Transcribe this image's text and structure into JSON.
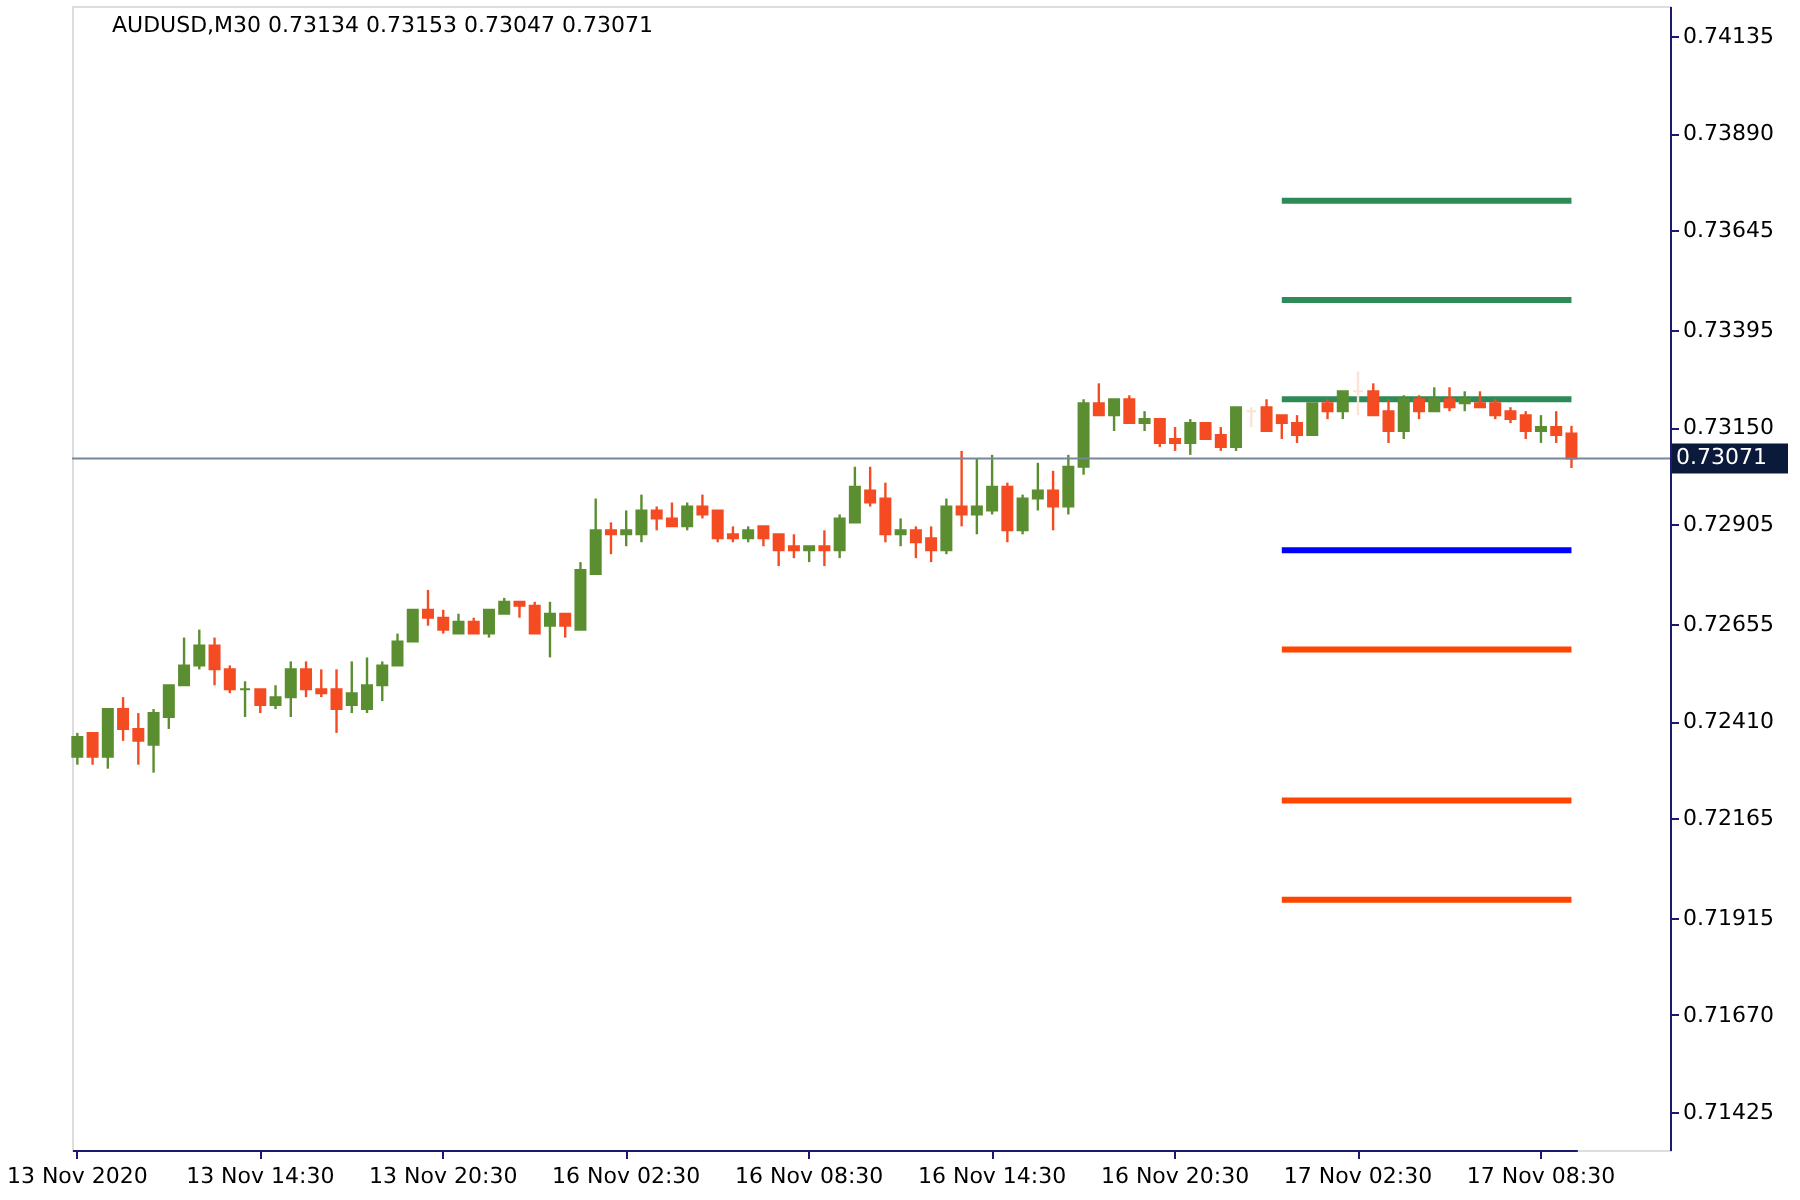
{
  "chart_data": {
    "type": "candlestick",
    "title": "AUDUSD,M30  0.73134 0.73153 0.73047 0.73071",
    "categories": [
      "13 Nov 2020",
      null,
      null,
      null,
      null,
      null,
      null,
      null,
      null,
      null,
      null,
      null,
      "13 Nov 14:30",
      null,
      null,
      null,
      null,
      null,
      null,
      null,
      null,
      null,
      null,
      null,
      "13 Nov 20:30",
      null,
      null,
      null,
      null,
      null,
      null,
      null,
      null,
      null,
      null,
      null,
      "16 Nov 02:30",
      null,
      null,
      null,
      null,
      null,
      null,
      null,
      null,
      null,
      null,
      null,
      "16 Nov 08:30",
      null,
      null,
      null,
      null,
      null,
      null,
      null,
      null,
      null,
      null,
      null,
      "16 Nov 14:30",
      null,
      null,
      null,
      null,
      null,
      null,
      null,
      null,
      null,
      null,
      null,
      "16 Nov 20:30",
      null,
      null,
      null,
      null,
      null,
      null,
      null,
      null,
      null,
      null,
      null,
      "17 Nov 02:30",
      null,
      null,
      null,
      null,
      null,
      null,
      null,
      null,
      null,
      null,
      null,
      "17 Nov 08:30",
      null,
      null
    ],
    "ohlc": [
      [
        0.7232,
        0.7238,
        0.723,
        0.7237
      ],
      [
        0.7238,
        0.7238,
        0.723,
        0.7232
      ],
      [
        0.7232,
        0.7244,
        0.7229,
        0.7244
      ],
      [
        0.7244,
        0.7247,
        0.7236,
        0.7239
      ],
      [
        0.7239,
        0.7243,
        0.723,
        0.7236
      ],
      [
        0.7235,
        0.7244,
        0.7228,
        0.7243
      ],
      [
        0.7242,
        0.725,
        0.7239,
        0.725
      ],
      [
        0.725,
        0.7262,
        0.725,
        0.7255
      ],
      [
        0.7255,
        0.7264,
        0.7254,
        0.726
      ],
      [
        0.726,
        0.7262,
        0.725,
        0.7254
      ],
      [
        0.7254,
        0.7255,
        0.7248,
        0.7249
      ],
      [
        0.7249,
        0.7251,
        0.7242,
        0.7249
      ],
      [
        0.7249,
        0.7249,
        0.7243,
        0.7245
      ],
      [
        0.7245,
        0.725,
        0.7244,
        0.7247
      ],
      [
        0.7247,
        0.7256,
        0.7242,
        0.7254
      ],
      [
        0.7254,
        0.7256,
        0.7247,
        0.7249
      ],
      [
        0.7249,
        0.7254,
        0.7247,
        0.7248
      ],
      [
        0.7249,
        0.7254,
        0.7238,
        0.7244
      ],
      [
        0.7245,
        0.7256,
        0.7243,
        0.7248
      ],
      [
        0.7244,
        0.7257,
        0.7243,
        0.725
      ],
      [
        0.725,
        0.7256,
        0.7246,
        0.7255
      ],
      [
        0.7255,
        0.7263,
        0.7255,
        0.7261
      ],
      [
        0.7261,
        0.7269,
        0.7261,
        0.7269
      ],
      [
        0.7269,
        0.7274,
        0.7265,
        0.7267
      ],
      [
        0.7267,
        0.7269,
        0.7263,
        0.7264
      ],
      [
        0.7263,
        0.7268,
        0.7263,
        0.7266
      ],
      [
        0.7266,
        0.7267,
        0.7263,
        0.7263
      ],
      [
        0.7263,
        0.7269,
        0.7262,
        0.7269
      ],
      [
        0.7268,
        0.7272,
        0.7268,
        0.7271
      ],
      [
        0.7271,
        0.7271,
        0.7267,
        0.727
      ],
      [
        0.727,
        0.7271,
        0.7263,
        0.7263
      ],
      [
        0.7265,
        0.7271,
        0.7257,
        0.7268
      ],
      [
        0.7268,
        0.7268,
        0.7262,
        0.7265
      ],
      [
        0.7264,
        0.7281,
        0.7264,
        0.7279
      ],
      [
        0.7278,
        0.7297,
        0.7278,
        0.7289
      ],
      [
        0.7289,
        0.7291,
        0.7283,
        0.7288
      ],
      [
        0.7288,
        0.7294,
        0.7285,
        0.7289
      ],
      [
        0.7288,
        0.7298,
        0.7286,
        0.7294
      ],
      [
        0.7294,
        0.7295,
        0.7289,
        0.7292
      ],
      [
        0.7292,
        0.7296,
        0.729,
        0.729
      ],
      [
        0.729,
        0.7296,
        0.7289,
        0.7295
      ],
      [
        0.7295,
        0.7298,
        0.7292,
        0.7293
      ],
      [
        0.7294,
        0.7294,
        0.7286,
        0.7287
      ],
      [
        0.7288,
        0.729,
        0.7286,
        0.7287
      ],
      [
        0.7287,
        0.729,
        0.7286,
        0.7289
      ],
      [
        0.729,
        0.729,
        0.7285,
        0.7287
      ],
      [
        0.7288,
        0.7288,
        0.728,
        0.7284
      ],
      [
        0.7285,
        0.7288,
        0.7282,
        0.7284
      ],
      [
        0.7284,
        0.7285,
        0.7281,
        0.7285
      ],
      [
        0.7285,
        0.7289,
        0.728,
        0.7284
      ],
      [
        0.7284,
        0.7293,
        0.7282,
        0.7292
      ],
      [
        0.7291,
        0.7305,
        0.7291,
        0.73
      ],
      [
        0.7299,
        0.7305,
        0.7295,
        0.7296
      ],
      [
        0.7297,
        0.7301,
        0.7286,
        0.7288
      ],
      [
        0.7288,
        0.7292,
        0.7285,
        0.7289
      ],
      [
        0.7289,
        0.729,
        0.7282,
        0.7286
      ],
      [
        0.7287,
        0.729,
        0.7281,
        0.7284
      ],
      [
        0.7284,
        0.7297,
        0.7283,
        0.7295
      ],
      [
        0.7295,
        0.7309,
        0.729,
        0.7293
      ],
      [
        0.7293,
        0.7307,
        0.7288,
        0.7295
      ],
      [
        0.7294,
        0.7308,
        0.7293,
        0.73
      ],
      [
        0.73,
        0.7301,
        0.7286,
        0.7289
      ],
      [
        0.7289,
        0.7298,
        0.7288,
        0.7297
      ],
      [
        0.7297,
        0.7306,
        0.7294,
        0.7299
      ],
      [
        0.7299,
        0.7304,
        0.7289,
        0.7295
      ],
      [
        0.7295,
        0.7308,
        0.7293,
        0.7305
      ],
      [
        0.7305,
        0.7322,
        0.7303,
        0.7321
      ],
      [
        0.7321,
        0.7326,
        0.7318,
        0.7318
      ],
      [
        0.7318,
        0.7322,
        0.7314,
        0.7322
      ],
      [
        0.7322,
        0.7323,
        0.7316,
        0.7316
      ],
      [
        0.7316,
        0.7319,
        0.7314,
        0.7317
      ],
      [
        0.7317,
        0.7317,
        0.731,
        0.7311
      ],
      [
        0.7312,
        0.7315,
        0.7309,
        0.7311
      ],
      [
        0.7311,
        0.7317,
        0.7308,
        0.7316
      ],
      [
        0.7316,
        0.7316,
        0.7312,
        0.7312
      ],
      [
        0.7313,
        0.7315,
        0.7309,
        0.731
      ],
      [
        0.731,
        0.732,
        0.7309,
        0.732
      ],
      [
        0.7319,
        0.732,
        0.7315,
        0.7319
      ],
      [
        0.732,
        0.7322,
        0.7314,
        0.7314
      ],
      [
        0.7318,
        0.7318,
        0.7312,
        0.7316
      ],
      [
        0.7316,
        0.7318,
        0.7311,
        0.7313
      ],
      [
        0.7313,
        0.7321,
        0.7313,
        0.7321
      ],
      [
        0.7321,
        0.7322,
        0.7317,
        0.7319
      ],
      [
        0.7319,
        0.7324,
        0.7317,
        0.7324
      ],
      [
        0.7324,
        0.7329,
        0.7318,
        0.7324
      ],
      [
        0.7324,
        0.7326,
        0.7318,
        0.7318
      ],
      [
        0.7319,
        0.7322,
        0.7311,
        0.7314
      ],
      [
        0.7314,
        0.7323,
        0.7312,
        0.7322
      ],
      [
        0.7322,
        0.7323,
        0.7317,
        0.7319
      ],
      [
        0.7319,
        0.7325,
        0.7319,
        0.7322
      ],
      [
        0.7322,
        0.7325,
        0.7319,
        0.732
      ],
      [
        0.7321,
        0.7324,
        0.7319,
        0.7322
      ],
      [
        0.7321,
        0.7324,
        0.732,
        0.732
      ],
      [
        0.7321,
        0.7322,
        0.7317,
        0.7318
      ],
      [
        0.7319,
        0.732,
        0.7316,
        0.7317
      ],
      [
        0.7318,
        0.7319,
        0.7312,
        0.7314
      ],
      [
        0.7314,
        0.7318,
        0.7311,
        0.7315
      ],
      [
        0.7315,
        0.7319,
        0.7311,
        0.7313
      ],
      [
        0.73134,
        0.73153,
        0.73047,
        0.73071
      ]
    ],
    "colors": [
      "#5b8e31",
      "#f44b23",
      "#5b8e31",
      "#f44b23",
      "#f44b23",
      "#5b8e31",
      "#5b8e31",
      "#5b8e31",
      "#5b8e31",
      "#f44b23",
      "#f44b23",
      "#5b8e31",
      "#f44b23",
      "#5b8e31",
      "#5b8e31",
      "#f44b23",
      "#f44b23",
      "#f44b23",
      "#5b8e31",
      "#5b8e31",
      "#5b8e31",
      "#5b8e31",
      "#5b8e31",
      "#f44b23",
      "#f44b23",
      "#5b8e31",
      "#f44b23",
      "#5b8e31",
      "#5b8e31",
      "#f44b23",
      "#f44b23",
      "#5b8e31",
      "#f44b23",
      "#5b8e31",
      "#5b8e31",
      "#f44b23",
      "#5b8e31",
      "#5b8e31",
      "#f44b23",
      "#f44b23",
      "#5b8e31",
      "#f44b23",
      "#f44b23",
      "#f44b23",
      "#5b8e31",
      "#f44b23",
      "#f44b23",
      "#f44b23",
      "#5b8e31",
      "#f44b23",
      "#5b8e31",
      "#5b8e31",
      "#f44b23",
      "#f44b23",
      "#5b8e31",
      "#f44b23",
      "#f44b23",
      "#5b8e31",
      "#f44b23",
      "#5b8e31",
      "#5b8e31",
      "#f44b23",
      "#5b8e31",
      "#5b8e31",
      "#f44b23",
      "#5b8e31",
      "#5b8e31",
      "#f44b23",
      "#5b8e31",
      "#f44b23",
      "#5b8e31",
      "#f44b23",
      "#f44b23",
      "#5b8e31",
      "#f44b23",
      "#f44b23",
      "#5b8e31",
      "#fbe3d8",
      "#f44b23",
      "#f44b23",
      "#f44b23",
      "#5b8e31",
      "#f44b23",
      "#5b8e31",
      "#fbe3d8",
      "#f44b23",
      "#f44b23",
      "#5b8e31",
      "#f44b23",
      "#5b8e31",
      "#f44b23",
      "#5b8e31",
      "#f44b23",
      "#f44b23",
      "#f44b23",
      "#f44b23",
      "#5b8e31",
      "#f44b23",
      "#f44b23"
    ],
    "ylim": [
      0.7133,
      0.7421
    ],
    "yticks": [
      {
        "value": 0.74135,
        "label": "0.74135"
      },
      {
        "value": 0.7389,
        "label": "0.73890"
      },
      {
        "value": 0.73645,
        "label": "0.73645"
      },
      {
        "value": 0.73395,
        "label": "0.73395"
      },
      {
        "value": 0.7315,
        "label": "0.73150"
      },
      {
        "value": 0.72905,
        "label": "0.72905"
      },
      {
        "value": 0.72655,
        "label": "0.72655"
      },
      {
        "value": 0.7241,
        "label": "0.72410"
      },
      {
        "value": 0.72165,
        "label": "0.72165"
      },
      {
        "value": 0.71915,
        "label": "0.71915"
      },
      {
        "value": 0.7167,
        "label": "0.71670"
      },
      {
        "value": 0.71425,
        "label": "0.71425"
      }
    ],
    "series": [
      {
        "type": "line",
        "color": "#2e8b57",
        "values": [
          null,
          null,
          null,
          null,
          null,
          null,
          null,
          null,
          null,
          null,
          null,
          null,
          null,
          null,
          null,
          null,
          null,
          null,
          null,
          null,
          null,
          null,
          null,
          null,
          null,
          null,
          null,
          null,
          null,
          null,
          null,
          null,
          null,
          null,
          null,
          null,
          null,
          null,
          null,
          null,
          null,
          null,
          null,
          null,
          null,
          null,
          null,
          null,
          null,
          null,
          null,
          null,
          null,
          null,
          null,
          null,
          null,
          null,
          null,
          null,
          null,
          null,
          null,
          null,
          null,
          null,
          null,
          null,
          null,
          null,
          null,
          null,
          null,
          null,
          null,
          null,
          null,
          null,
          null,
          0.7372,
          0.7372,
          0.7372,
          0.7372,
          0.7372,
          0.7372,
          0.7372,
          0.7372,
          0.7372,
          0.7372,
          0.7372,
          0.7372,
          0.7372,
          0.7372,
          0.7372,
          0.7372,
          0.7372,
          0.7372,
          0.7372,
          0.7372
        ]
      },
      {
        "type": "line",
        "color": "#2e8b57",
        "values": [
          null,
          null,
          null,
          null,
          null,
          null,
          null,
          null,
          null,
          null,
          null,
          null,
          null,
          null,
          null,
          null,
          null,
          null,
          null,
          null,
          null,
          null,
          null,
          null,
          null,
          null,
          null,
          null,
          null,
          null,
          null,
          null,
          null,
          null,
          null,
          null,
          null,
          null,
          null,
          null,
          null,
          null,
          null,
          null,
          null,
          null,
          null,
          null,
          null,
          null,
          null,
          null,
          null,
          null,
          null,
          null,
          null,
          null,
          null,
          null,
          null,
          null,
          null,
          null,
          null,
          null,
          null,
          null,
          null,
          null,
          null,
          null,
          null,
          null,
          null,
          null,
          null,
          null,
          null,
          0.7347,
          0.7347,
          0.7347,
          0.7347,
          0.7347,
          0.7347,
          0.7347,
          0.7347,
          0.7347,
          0.7347,
          0.7347,
          0.7347,
          0.7347,
          0.7347,
          0.7347,
          0.7347,
          0.7347,
          0.7347,
          0.7347,
          0.7347
        ]
      },
      {
        "type": "line",
        "color": "#2e8b57",
        "values": [
          null,
          null,
          null,
          null,
          null,
          null,
          null,
          null,
          null,
          null,
          null,
          null,
          null,
          null,
          null,
          null,
          null,
          null,
          null,
          null,
          null,
          null,
          null,
          null,
          null,
          null,
          null,
          null,
          null,
          null,
          null,
          null,
          null,
          null,
          null,
          null,
          null,
          null,
          null,
          null,
          null,
          null,
          null,
          null,
          null,
          null,
          null,
          null,
          null,
          null,
          null,
          null,
          null,
          null,
          null,
          null,
          null,
          null,
          null,
          null,
          null,
          null,
          null,
          null,
          null,
          null,
          null,
          null,
          null,
          null,
          null,
          null,
          null,
          null,
          null,
          null,
          null,
          null,
          null,
          0.7322,
          0.7322,
          0.7322,
          0.7322,
          0.7322,
          0.7322,
          0.7322,
          0.7322,
          0.7322,
          0.7322,
          0.7322,
          0.7322,
          0.7322,
          0.7322,
          0.7322,
          0.7322,
          0.7322,
          0.7322,
          0.7322,
          0.7322
        ]
      },
      {
        "type": "line",
        "color": "#0000ff",
        "values": [
          null,
          null,
          null,
          null,
          null,
          null,
          null,
          null,
          null,
          null,
          null,
          null,
          null,
          null,
          null,
          null,
          null,
          null,
          null,
          null,
          null,
          null,
          null,
          null,
          null,
          null,
          null,
          null,
          null,
          null,
          null,
          null,
          null,
          null,
          null,
          null,
          null,
          null,
          null,
          null,
          null,
          null,
          null,
          null,
          null,
          null,
          null,
          null,
          null,
          null,
          null,
          null,
          null,
          null,
          null,
          null,
          null,
          null,
          null,
          null,
          null,
          null,
          null,
          null,
          null,
          null,
          null,
          null,
          null,
          null,
          null,
          null,
          null,
          null,
          null,
          null,
          null,
          null,
          null,
          0.7284,
          0.7284,
          0.7284,
          0.7284,
          0.7284,
          0.7284,
          0.7284,
          0.7284,
          0.7284,
          0.7284,
          0.7284,
          0.7284,
          0.7284,
          0.7284,
          0.7284,
          0.7284,
          0.7284,
          0.7284,
          0.7284,
          0.7284
        ]
      },
      {
        "type": "line",
        "color": "#ff4500",
        "values": [
          null,
          null,
          null,
          null,
          null,
          null,
          null,
          null,
          null,
          null,
          null,
          null,
          null,
          null,
          null,
          null,
          null,
          null,
          null,
          null,
          null,
          null,
          null,
          null,
          null,
          null,
          null,
          null,
          null,
          null,
          null,
          null,
          null,
          null,
          null,
          null,
          null,
          null,
          null,
          null,
          null,
          null,
          null,
          null,
          null,
          null,
          null,
          null,
          null,
          null,
          null,
          null,
          null,
          null,
          null,
          null,
          null,
          null,
          null,
          null,
          null,
          null,
          null,
          null,
          null,
          null,
          null,
          null,
          null,
          null,
          null,
          null,
          null,
          null,
          null,
          null,
          null,
          null,
          null,
          0.7259,
          0.7259,
          0.7259,
          0.7259,
          0.7259,
          0.7259,
          0.7259,
          0.7259,
          0.7259,
          0.7259,
          0.7259,
          0.7259,
          0.7259,
          0.7259,
          0.7259,
          0.7259,
          0.7259,
          0.7259,
          0.7259,
          0.7259
        ]
      },
      {
        "type": "line",
        "color": "#ff4500",
        "values": [
          null,
          null,
          null,
          null,
          null,
          null,
          null,
          null,
          null,
          null,
          null,
          null,
          null,
          null,
          null,
          null,
          null,
          null,
          null,
          null,
          null,
          null,
          null,
          null,
          null,
          null,
          null,
          null,
          null,
          null,
          null,
          null,
          null,
          null,
          null,
          null,
          null,
          null,
          null,
          null,
          null,
          null,
          null,
          null,
          null,
          null,
          null,
          null,
          null,
          null,
          null,
          null,
          null,
          null,
          null,
          null,
          null,
          null,
          null,
          null,
          null,
          null,
          null,
          null,
          null,
          null,
          null,
          null,
          null,
          null,
          null,
          null,
          null,
          null,
          null,
          null,
          null,
          null,
          null,
          0.7221,
          0.7221,
          0.7221,
          0.7221,
          0.7221,
          0.7221,
          0.7221,
          0.7221,
          0.7221,
          0.7221,
          0.7221,
          0.7221,
          0.7221,
          0.7221,
          0.7221,
          0.7221,
          0.7221,
          0.7221,
          0.7221,
          0.7221
        ]
      },
      {
        "type": "line",
        "color": "#ff4500",
        "values": [
          null,
          null,
          null,
          null,
          null,
          null,
          null,
          null,
          null,
          null,
          null,
          null,
          null,
          null,
          null,
          null,
          null,
          null,
          null,
          null,
          null,
          null,
          null,
          null,
          null,
          null,
          null,
          null,
          null,
          null,
          null,
          null,
          null,
          null,
          null,
          null,
          null,
          null,
          null,
          null,
          null,
          null,
          null,
          null,
          null,
          null,
          null,
          null,
          null,
          null,
          null,
          null,
          null,
          null,
          null,
          null,
          null,
          null,
          null,
          null,
          null,
          null,
          null,
          null,
          null,
          null,
          null,
          null,
          null,
          null,
          null,
          null,
          null,
          null,
          null,
          null,
          null,
          null,
          null,
          0.7196,
          0.7196,
          0.7196,
          0.7196,
          0.7196,
          0.7196,
          0.7196,
          0.7196,
          0.7196,
          0.7196,
          0.7196,
          0.7196,
          0.7196,
          0.7196,
          0.7196,
          0.7196,
          0.7196,
          0.7196,
          0.7196,
          0.7196
        ]
      }
    ],
    "ref_lines": [
      {
        "axis": "y",
        "value": 0.73071,
        "label": "0.73071",
        "color": "#778899"
      }
    ]
  }
}
